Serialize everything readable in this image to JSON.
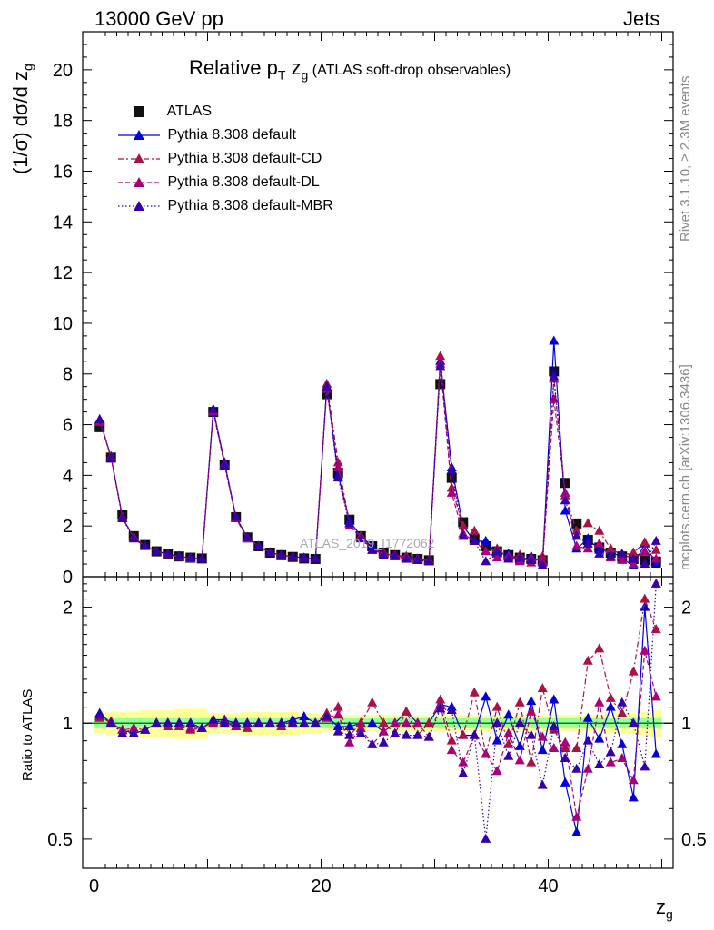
{
  "header": {
    "left": "13000 GeV pp",
    "right": "Jets"
  },
  "side_labels": {
    "rivet": "Rivet 3.1.10, ≥ 2.3M events",
    "mcplots": "mcplots.cern.ch [arXiv:1306.3436]"
  },
  "watermark": "ATLAS_2019_I1772062",
  "title": {
    "main": "Relative p",
    "sub": "T",
    "after": " z",
    "sub2": "g",
    "paren": " (ATLAS soft-drop observables)"
  },
  "legend": [
    {
      "label": "ATLAS",
      "color": "#000000",
      "marker": "square",
      "line": "none"
    },
    {
      "label": "Pythia 8.308 default",
      "color": "#0000dd",
      "marker": "triangle",
      "line": "solid"
    },
    {
      "label": "Pythia 8.308 default-CD",
      "color": "#aa1144",
      "marker": "triangle",
      "line": "dashdot"
    },
    {
      "label": "Pythia 8.308 default-DL",
      "color": "#aa0077",
      "marker": "triangle",
      "line": "dashed"
    },
    {
      "label": "Pythia 8.308 default-MBR",
      "color": "#3300aa",
      "marker": "triangle",
      "line": "dotted"
    }
  ],
  "chart_data": [
    {
      "type": "scatter",
      "title": "Relative pT zg (ATLAS soft-drop observables)",
      "ylabel": "(1/σ) dσ/d zg",
      "xlabel": "zg",
      "xlim": [
        -1,
        51
      ],
      "ylim": [
        0,
        21.5
      ],
      "yticks": [
        0,
        2,
        4,
        6,
        8,
        10,
        12,
        14,
        16,
        18,
        20
      ],
      "x": [
        0.5,
        1.5,
        2.5,
        3.5,
        4.5,
        5.5,
        6.5,
        7.5,
        8.5,
        9.5,
        10.5,
        11.5,
        12.5,
        13.5,
        14.5,
        15.5,
        16.5,
        17.5,
        18.5,
        19.5,
        20.5,
        21.5,
        22.5,
        23.5,
        24.5,
        25.5,
        26.5,
        27.5,
        28.5,
        29.5,
        30.5,
        31.5,
        32.5,
        33.5,
        34.5,
        35.5,
        36.5,
        37.5,
        38.5,
        39.5,
        40.5,
        41.5,
        42.5,
        43.5,
        44.5,
        45.5,
        46.5,
        47.5,
        48.5,
        49.5
      ],
      "series": [
        {
          "name": "ATLAS",
          "values": [
            5.9,
            4.7,
            2.45,
            1.6,
            1.25,
            1.0,
            0.9,
            0.8,
            0.75,
            0.72,
            6.5,
            4.4,
            2.35,
            1.55,
            1.2,
            0.95,
            0.85,
            0.78,
            0.72,
            0.7,
            7.2,
            4.1,
            2.25,
            1.6,
            1.2,
            0.95,
            0.85,
            0.75,
            0.7,
            0.65,
            7.6,
            3.9,
            2.15,
            1.5,
            1.2,
            1.0,
            0.85,
            0.75,
            0.7,
            0.65,
            8.1,
            3.7,
            2.1,
            1.45,
            1.15,
            0.95,
            0.8,
            0.7,
            0.65,
            0.6
          ]
        },
        {
          "name": "Pythia 8.308 default",
          "values": [
            6.2,
            4.7,
            2.35,
            1.5,
            1.2,
            1.0,
            0.9,
            0.8,
            0.75,
            0.7,
            6.6,
            4.5,
            2.35,
            1.55,
            1.2,
            0.95,
            0.85,
            0.8,
            0.75,
            0.7,
            7.5,
            4.0,
            2.2,
            1.6,
            1.2,
            0.9,
            0.85,
            0.8,
            0.7,
            0.65,
            8.5,
            4.3,
            2.0,
            1.4,
            1.4,
            0.9,
            0.9,
            0.65,
            0.8,
            0.55,
            9.3,
            2.6,
            1.1,
            1.5,
            1.05,
            1.05,
            0.7,
            0.45,
            1.3,
            0.5
          ]
        },
        {
          "name": "Pythia 8.308 default-CD",
          "values": [
            6.1,
            4.75,
            2.3,
            1.55,
            1.2,
            1.0,
            0.88,
            0.78,
            0.72,
            0.7,
            6.55,
            4.45,
            2.3,
            1.5,
            1.2,
            0.95,
            0.83,
            0.78,
            0.72,
            0.7,
            7.6,
            4.5,
            2.1,
            1.6,
            1.05,
            0.95,
            0.8,
            0.8,
            0.65,
            0.65,
            8.7,
            3.5,
            2.0,
            1.8,
            1.0,
            1.1,
            0.75,
            0.85,
            0.55,
            0.8,
            7.8,
            3.2,
            1.8,
            2.1,
            1.8,
            1.1,
            0.85,
            0.95,
            1.35,
            1.05
          ]
        },
        {
          "name": "Pythia 8.308 default-DL",
          "values": [
            6.15,
            4.7,
            2.35,
            1.55,
            1.2,
            1.0,
            0.9,
            0.8,
            0.73,
            0.7,
            6.5,
            4.4,
            2.3,
            1.55,
            1.2,
            0.95,
            0.85,
            0.78,
            0.72,
            0.7,
            7.4,
            4.3,
            2.0,
            1.55,
            1.05,
            0.9,
            0.85,
            0.75,
            0.7,
            0.6,
            8.4,
            3.3,
            1.7,
            1.4,
            1.0,
            0.75,
            0.8,
            0.6,
            0.75,
            0.6,
            7.0,
            3.3,
            1.2,
            1.1,
            1.3,
            0.75,
            0.65,
            0.5,
            1.0,
            0.7
          ]
        },
        {
          "name": "Pythia 8.308 default-MBR",
          "values": [
            6.2,
            4.7,
            2.3,
            1.5,
            1.2,
            1.0,
            0.9,
            0.8,
            0.75,
            0.7,
            6.6,
            4.4,
            2.35,
            1.55,
            1.2,
            0.95,
            0.85,
            0.78,
            0.72,
            0.7,
            7.5,
            3.9,
            2.1,
            1.5,
            1.05,
            0.85,
            0.8,
            0.7,
            0.65,
            0.6,
            8.3,
            4.2,
            1.6,
            1.4,
            0.6,
            1.0,
            0.7,
            0.75,
            0.65,
            0.45,
            7.9,
            3.0,
            1.6,
            1.3,
            0.9,
            0.8,
            0.9,
            0.7,
            0.5,
            1.4
          ]
        }
      ]
    },
    {
      "type": "scatter",
      "ylabel": "Ratio to ATLAS",
      "xlabel": "zg",
      "xlim": [
        -1,
        51
      ],
      "ylim": [
        0.42,
        2.4
      ],
      "log_y": true,
      "yticks": [
        0.5,
        1,
        2
      ],
      "xticks": [
        0,
        20,
        40
      ],
      "x": [
        0.5,
        1.5,
        2.5,
        3.5,
        4.5,
        5.5,
        6.5,
        7.5,
        8.5,
        9.5,
        10.5,
        11.5,
        12.5,
        13.5,
        14.5,
        15.5,
        16.5,
        17.5,
        18.5,
        19.5,
        20.5,
        21.5,
        22.5,
        23.5,
        24.5,
        25.5,
        26.5,
        27.5,
        28.5,
        29.5,
        30.5,
        31.5,
        32.5,
        33.5,
        34.5,
        35.5,
        36.5,
        37.5,
        38.5,
        39.5,
        40.5,
        41.5,
        42.5,
        43.5,
        44.5,
        45.5,
        46.5,
        47.5,
        48.5,
        49.5
      ],
      "band_stat": [
        0.03,
        0.03,
        0.03,
        0.03,
        0.03,
        0.03,
        0.03,
        0.03,
        0.03,
        0.03,
        0.03,
        0.03,
        0.03,
        0.03,
        0.03,
        0.03,
        0.03,
        0.03,
        0.03,
        0.03,
        0.03,
        0.03,
        0.03,
        0.03,
        0.03,
        0.03,
        0.03,
        0.03,
        0.03,
        0.03,
        0.03,
        0.03,
        0.03,
        0.03,
        0.03,
        0.03,
        0.03,
        0.03,
        0.03,
        0.03,
        0.03,
        0.03,
        0.03,
        0.03,
        0.03,
        0.03,
        0.03,
        0.03,
        0.03,
        0.03
      ],
      "band_total": [
        0.06,
        0.07,
        0.07,
        0.07,
        0.08,
        0.08,
        0.08,
        0.09,
        0.09,
        0.09,
        0.06,
        0.06,
        0.06,
        0.07,
        0.07,
        0.07,
        0.07,
        0.07,
        0.06,
        0.06,
        0.05,
        0.05,
        0.05,
        0.05,
        0.05,
        0.05,
        0.05,
        0.05,
        0.05,
        0.05,
        0.05,
        0.05,
        0.05,
        0.05,
        0.05,
        0.05,
        0.05,
        0.05,
        0.05,
        0.05,
        0.05,
        0.05,
        0.05,
        0.05,
        0.05,
        0.06,
        0.06,
        0.06,
        0.07,
        0.08
      ],
      "series": [
        {
          "name": "Pythia 8.308 default",
          "values": [
            1.06,
            1.0,
            0.96,
            0.94,
            0.96,
            1.0,
            1.0,
            1.0,
            1.0,
            0.97,
            1.02,
            1.02,
            1.0,
            1.0,
            1.0,
            1.0,
            1.0,
            1.02,
            1.04,
            1.0,
            1.04,
            0.98,
            0.98,
            1.0,
            1.0,
            0.95,
            1.0,
            1.07,
            1.0,
            1.0,
            1.12,
            1.1,
            0.93,
            0.93,
            1.17,
            0.9,
            1.05,
            0.87,
            1.14,
            0.85,
            1.15,
            0.7,
            0.52,
            1.03,
            0.91,
            1.1,
            0.88,
            0.64,
            2.0,
            0.83
          ]
        },
        {
          "name": "Pythia 8.308 default-CD",
          "values": [
            1.03,
            1.01,
            0.94,
            0.97,
            0.96,
            1.0,
            0.98,
            0.98,
            0.96,
            0.97,
            1.01,
            1.01,
            0.98,
            0.97,
            1.0,
            1.0,
            0.98,
            1.0,
            1.0,
            1.0,
            1.06,
            1.1,
            0.93,
            1.0,
            1.13,
            1.0,
            0.94,
            1.07,
            0.93,
            1.0,
            1.15,
            0.9,
            0.93,
            1.2,
            0.83,
            1.1,
            0.88,
            1.13,
            0.79,
            1.23,
            0.96,
            0.86,
            0.86,
            1.45,
            1.56,
            1.16,
            1.06,
            1.36,
            2.1,
            1.75
          ]
        },
        {
          "name": "Pythia 8.308 default-DL",
          "values": [
            1.04,
            1.0,
            0.96,
            0.97,
            0.96,
            1.0,
            1.0,
            1.0,
            0.97,
            0.97,
            1.0,
            1.0,
            0.98,
            1.0,
            1.0,
            1.0,
            1.0,
            1.0,
            1.0,
            1.0,
            1.03,
            1.05,
            0.89,
            0.97,
            0.88,
            0.95,
            1.0,
            1.0,
            1.0,
            0.92,
            1.11,
            0.85,
            0.79,
            0.93,
            0.83,
            0.75,
            0.94,
            0.8,
            1.07,
            0.92,
            0.86,
            0.89,
            0.57,
            0.76,
            1.13,
            0.79,
            0.81,
            0.71,
            1.54,
            1.17
          ]
        },
        {
          "name": "Pythia 8.308 default-MBR",
          "values": [
            1.05,
            1.0,
            0.94,
            0.94,
            0.96,
            1.0,
            1.0,
            1.0,
            1.0,
            0.97,
            1.02,
            1.0,
            1.0,
            1.0,
            1.0,
            1.0,
            1.0,
            1.0,
            1.0,
            1.0,
            1.04,
            0.95,
            0.93,
            0.94,
            0.88,
            0.89,
            0.94,
            0.93,
            0.93,
            0.92,
            1.09,
            1.08,
            0.74,
            0.93,
            0.5,
            1.0,
            0.82,
            1.0,
            0.93,
            0.69,
            0.98,
            0.81,
            0.76,
            0.9,
            0.78,
            0.84,
            1.13,
            1.0,
            0.77,
            2.3
          ]
        }
      ]
    }
  ],
  "axis_label_text": {
    "ylabel": "(1/σ) dσ/d z",
    "ylabel_sub": "g",
    "ratio_ylabel": "Ratio to ATLAS",
    "xlabel": "z",
    "xlabel_sub": "g"
  }
}
